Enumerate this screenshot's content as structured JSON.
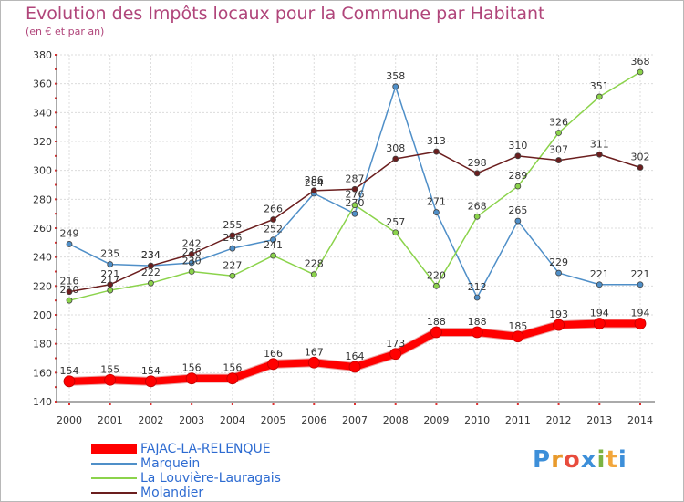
{
  "header": {
    "title": "Evolution des Impôts locaux pour la Commune par Habitant",
    "subtitle": "(en € et par an)"
  },
  "logo": {
    "text": "Proxiti",
    "letters": [
      "P",
      "r",
      "o",
      "x",
      "i",
      "t",
      "i"
    ],
    "colors": [
      "#3d8fd9",
      "#e89a2c",
      "#e84c3d",
      "#3d8fd9",
      "#7cb342",
      "#f2a63b",
      "#3d8fd9"
    ]
  },
  "chart_data": {
    "type": "line",
    "categories": [
      "2000",
      "2001",
      "2002",
      "2003",
      "2004",
      "2005",
      "2006",
      "2007",
      "2008",
      "2009",
      "2010",
      "2011",
      "2012",
      "2013",
      "2014"
    ],
    "y_ticks": [
      "140",
      "160",
      "180",
      "200",
      "220",
      "240",
      "260",
      "280",
      "300",
      "320",
      "340",
      "360",
      "380"
    ],
    "ylim": [
      140,
      380
    ],
    "grid": true,
    "legend_position": "bottom-left",
    "series": [
      {
        "name": "Marquein",
        "color": "#4f8fc8",
        "width": 1.5,
        "values": [
          249,
          235,
          234,
          236,
          246,
          252,
          284,
          270,
          358,
          271,
          212,
          265,
          229,
          221,
          221
        ],
        "labels": [
          "249",
          "235",
          "234",
          "236",
          "246",
          "252",
          "284",
          "270",
          "358",
          "271",
          "212",
          "265",
          "229",
          "221",
          "221"
        ]
      },
      {
        "name": "La Louvière-Lauragais",
        "color": "#8bd34b",
        "width": 1.5,
        "values": [
          210,
          217,
          222,
          230,
          227,
          241,
          228,
          276,
          257,
          220,
          268,
          289,
          326,
          351,
          368
        ],
        "labels": [
          "210",
          "217",
          "222",
          "230",
          "227",
          "241",
          "228",
          "276",
          "257",
          "220",
          "268",
          "289",
          "326",
          "351",
          "368"
        ]
      },
      {
        "name": "Molandier",
        "color": "#6b1e1e",
        "width": 1.5,
        "values": [
          216,
          221,
          234,
          242,
          255,
          266,
          286,
          287,
          308,
          313,
          298,
          310,
          307,
          311,
          302
        ],
        "labels": [
          "216",
          "221",
          "234",
          "242",
          "255",
          "266",
          "286",
          "287",
          "308",
          "313",
          "298",
          "310",
          "307",
          "311",
          "302"
        ]
      },
      {
        "name": "FAJAC-LA-RELENQUE",
        "color": "#ff0000",
        "width": 8,
        "values": [
          154,
          155,
          154,
          156,
          156,
          166,
          167,
          164,
          173,
          188,
          188,
          185,
          193,
          194,
          194
        ],
        "labels": [
          "154",
          "155",
          "154",
          "156",
          "156",
          "166",
          "167",
          "164",
          "173",
          "188",
          "188",
          "185",
          "193",
          "194",
          "194"
        ]
      }
    ],
    "legend_order": [
      "FAJAC-LA-RELENQUE",
      "Marquein",
      "La Louvière-Lauragais",
      "Molandier"
    ]
  }
}
